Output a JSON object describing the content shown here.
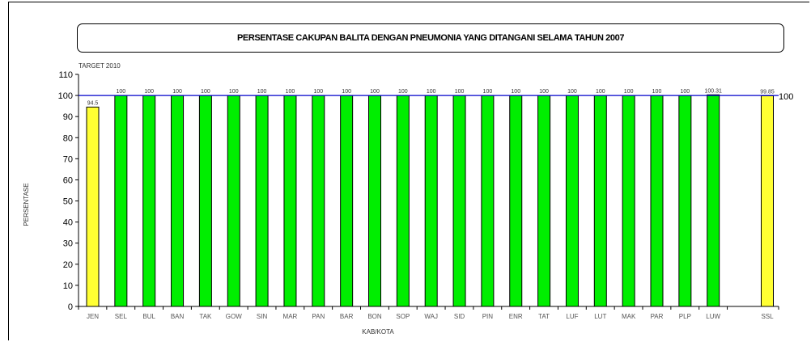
{
  "chart_data": {
    "type": "bar",
    "title": "PERSENTASE CAKUPAN BALITA DENGAN PNEUMONIA YANG DITANGANI SELAMA TAHUN 2007",
    "xlabel": "KAB/KOTA",
    "ylabel": "PERSENTASE",
    "ylim": [
      0,
      110
    ],
    "yticks": [
      "0",
      "10",
      "20",
      "30",
      "40",
      "50",
      "60",
      "70",
      "80",
      "90",
      "100",
      "110"
    ],
    "categories": [
      "JEN",
      "SEL",
      "BUL",
      "BAN",
      "TAK",
      "GOW",
      "SIN",
      "MAR",
      "PAN",
      "BAR",
      "BON",
      "SOP",
      "WAJ",
      "SID",
      "PIN",
      "ENR",
      "TAT",
      "LUF",
      "LUT",
      "MAK",
      "PAR",
      "PLP",
      "LUW",
      "SSL"
    ],
    "values": [
      94.5,
      100,
      100,
      100,
      100,
      100,
      100,
      100,
      100,
      100,
      100,
      100,
      100,
      100,
      100,
      100,
      100,
      100,
      100,
      100,
      100,
      100,
      100.31,
      99.85
    ],
    "value_labels": [
      "94.5",
      "100",
      "100",
      "100",
      "100",
      "100",
      "100",
      "100",
      "100",
      "100",
      "100",
      "100",
      "100",
      "100",
      "100",
      "100",
      "100",
      "100",
      "100",
      "100",
      "100",
      "100",
      "100.31",
      "99.85"
    ],
    "bar_colors": [
      "#ffff33",
      "#00ee00",
      "#00ee00",
      "#00ee00",
      "#00ee00",
      "#00ee00",
      "#00ee00",
      "#00ee00",
      "#00ee00",
      "#00ee00",
      "#00ee00",
      "#00ee00",
      "#00ee00",
      "#00ee00",
      "#00ee00",
      "#00ee00",
      "#00ee00",
      "#00ee00",
      "#00ee00",
      "#00ee00",
      "#00ee00",
      "#00ee00",
      "#00ee00",
      "#ffff33"
    ],
    "target": {
      "label": "TARGET 2010",
      "value": 100,
      "value_label": "100",
      "color": "#0000cc"
    },
    "grid": false,
    "legend": "none"
  }
}
